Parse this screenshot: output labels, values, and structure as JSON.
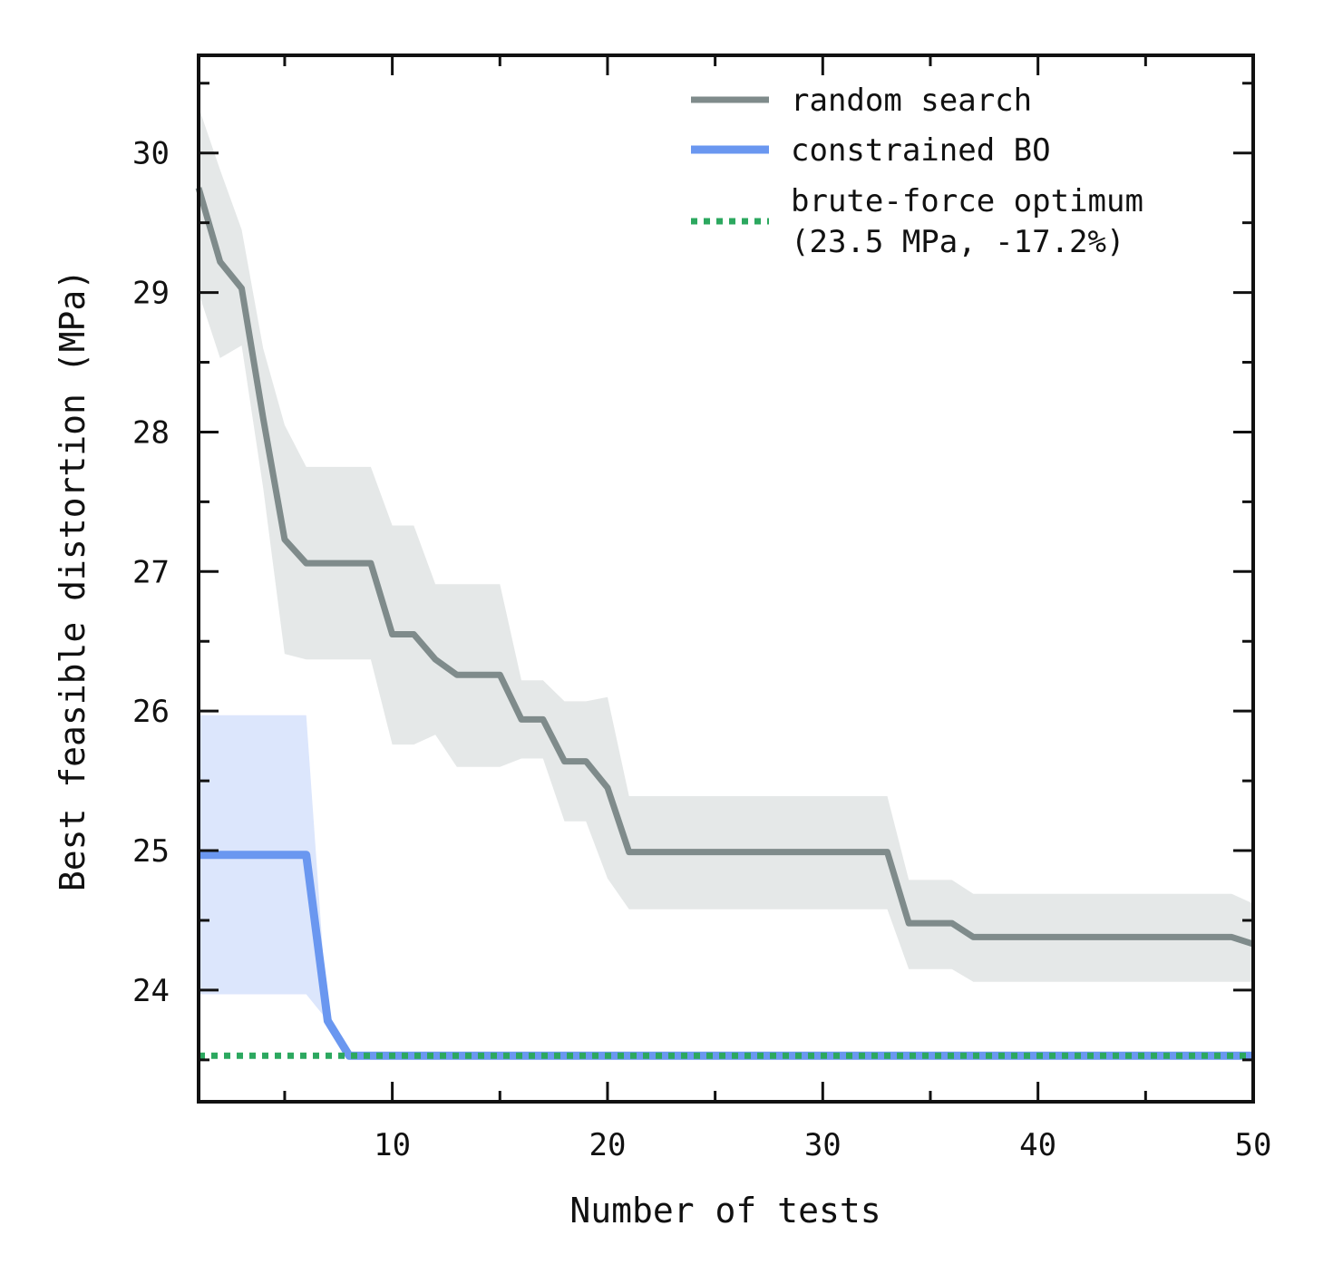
{
  "chart_data": {
    "type": "line",
    "title": "",
    "xlabel": "Number of tests",
    "ylabel": "Best feasible distortion (MPa)",
    "xlim": [
      1,
      50
    ],
    "ylim": [
      23.2,
      30.7
    ],
    "xticks": [
      10,
      20,
      30,
      40,
      50
    ],
    "yticks": [
      24,
      25,
      26,
      27,
      28,
      29,
      30
    ],
    "grid": false,
    "legend_position": "top-right",
    "series": [
      {
        "name": "random search",
        "color": "#7f8b8b",
        "band_color": "#e5e8e8",
        "x": [
          1,
          2,
          3,
          4,
          5,
          6,
          7,
          8,
          9,
          10,
          11,
          12,
          13,
          14,
          15,
          16,
          17,
          18,
          19,
          20,
          21,
          22,
          23,
          24,
          25,
          26,
          27,
          28,
          29,
          30,
          31,
          32,
          33,
          34,
          35,
          36,
          37,
          38,
          39,
          40,
          41,
          42,
          43,
          44,
          45,
          46,
          47,
          48,
          49,
          50
        ],
        "mean": [
          29.75,
          29.22,
          29.03,
          28.1,
          27.23,
          27.06,
          27.06,
          27.06,
          27.06,
          26.55,
          26.55,
          26.37,
          26.26,
          26.26,
          26.26,
          25.94,
          25.94,
          25.64,
          25.64,
          25.45,
          24.99,
          24.99,
          24.99,
          24.99,
          24.99,
          24.99,
          24.99,
          24.99,
          24.99,
          24.99,
          24.99,
          24.99,
          24.99,
          24.48,
          24.48,
          24.48,
          24.38,
          24.38,
          24.38,
          24.38,
          24.38,
          24.38,
          24.38,
          24.38,
          24.38,
          24.38,
          24.38,
          24.38,
          24.38,
          24.33
        ],
        "upper": [
          30.33,
          29.88,
          29.45,
          28.6,
          28.05,
          27.75,
          27.75,
          27.75,
          27.75,
          27.33,
          27.33,
          26.91,
          26.91,
          26.91,
          26.91,
          26.22,
          26.22,
          26.07,
          26.07,
          26.1,
          25.39,
          25.39,
          25.39,
          25.39,
          25.39,
          25.39,
          25.39,
          25.39,
          25.39,
          25.39,
          25.39,
          25.39,
          25.39,
          24.79,
          24.79,
          24.79,
          24.69,
          24.69,
          24.69,
          24.69,
          24.69,
          24.69,
          24.69,
          24.69,
          24.69,
          24.69,
          24.69,
          24.69,
          24.69,
          24.62
        ],
        "lower": [
          29.0,
          28.53,
          28.62,
          27.6,
          26.41,
          26.37,
          26.37,
          26.37,
          26.37,
          25.76,
          25.76,
          25.83,
          25.6,
          25.6,
          25.6,
          25.66,
          25.66,
          25.21,
          25.21,
          24.8,
          24.58,
          24.58,
          24.58,
          24.58,
          24.58,
          24.58,
          24.58,
          24.58,
          24.58,
          24.58,
          24.58,
          24.58,
          24.58,
          24.15,
          24.15,
          24.15,
          24.06,
          24.06,
          24.06,
          24.06,
          24.06,
          24.06,
          24.06,
          24.06,
          24.06,
          24.06,
          24.06,
          24.06,
          24.06,
          24.06
        ]
      },
      {
        "name": "constrained BO",
        "color": "#6a97f0",
        "band_color": "#dce6fc",
        "x": [
          1,
          2,
          3,
          4,
          5,
          6,
          7,
          8,
          9,
          10,
          11,
          12,
          13,
          14,
          15,
          16,
          17,
          18,
          19,
          20,
          21,
          22,
          23,
          24,
          25,
          26,
          27,
          28,
          29,
          30,
          31,
          32,
          33,
          34,
          35,
          36,
          37,
          38,
          39,
          40,
          41,
          42,
          43,
          44,
          45,
          46,
          47,
          48,
          49,
          50
        ],
        "mean": [
          24.97,
          24.97,
          24.97,
          24.97,
          24.97,
          24.97,
          23.78,
          23.53,
          23.53,
          23.53,
          23.53,
          23.53,
          23.53,
          23.53,
          23.53,
          23.53,
          23.53,
          23.53,
          23.53,
          23.53,
          23.53,
          23.53,
          23.53,
          23.53,
          23.53,
          23.53,
          23.53,
          23.53,
          23.53,
          23.53,
          23.53,
          23.53,
          23.53,
          23.53,
          23.53,
          23.53,
          23.53,
          23.53,
          23.53,
          23.53,
          23.53,
          23.53,
          23.53,
          23.53,
          23.53,
          23.53,
          23.53,
          23.53,
          23.53,
          23.53
        ],
        "upper": [
          25.97,
          25.97,
          25.97,
          25.97,
          25.97,
          25.97,
          23.78,
          23.53,
          23.53,
          23.53,
          23.53,
          23.53,
          23.53,
          23.53,
          23.53,
          23.53,
          23.53,
          23.53,
          23.53,
          23.53,
          23.53,
          23.53,
          23.53,
          23.53,
          23.53,
          23.53,
          23.53,
          23.53,
          23.53,
          23.53,
          23.53,
          23.53,
          23.53,
          23.53,
          23.53,
          23.53,
          23.53,
          23.53,
          23.53,
          23.53,
          23.53,
          23.53,
          23.53,
          23.53,
          23.53,
          23.53,
          23.53,
          23.53,
          23.53,
          23.53
        ],
        "lower": [
          23.97,
          23.97,
          23.97,
          23.97,
          23.97,
          23.97,
          23.78,
          23.53,
          23.53,
          23.53,
          23.53,
          23.53,
          23.53,
          23.53,
          23.53,
          23.53,
          23.53,
          23.53,
          23.53,
          23.53,
          23.53,
          23.53,
          23.53,
          23.53,
          23.53,
          23.53,
          23.53,
          23.53,
          23.53,
          23.53,
          23.53,
          23.53,
          23.53,
          23.53,
          23.53,
          23.53,
          23.53,
          23.53,
          23.53,
          23.53,
          23.53,
          23.53,
          23.53,
          23.53,
          23.53,
          23.53,
          23.53,
          23.53,
          23.53,
          23.53
        ]
      }
    ],
    "reference_line": {
      "name_line1": "brute-force optimum",
      "name_line2": "(23.5 MPa, -17.2%)",
      "y": 23.53,
      "color": "#2ca85f",
      "style": "dotted"
    }
  }
}
